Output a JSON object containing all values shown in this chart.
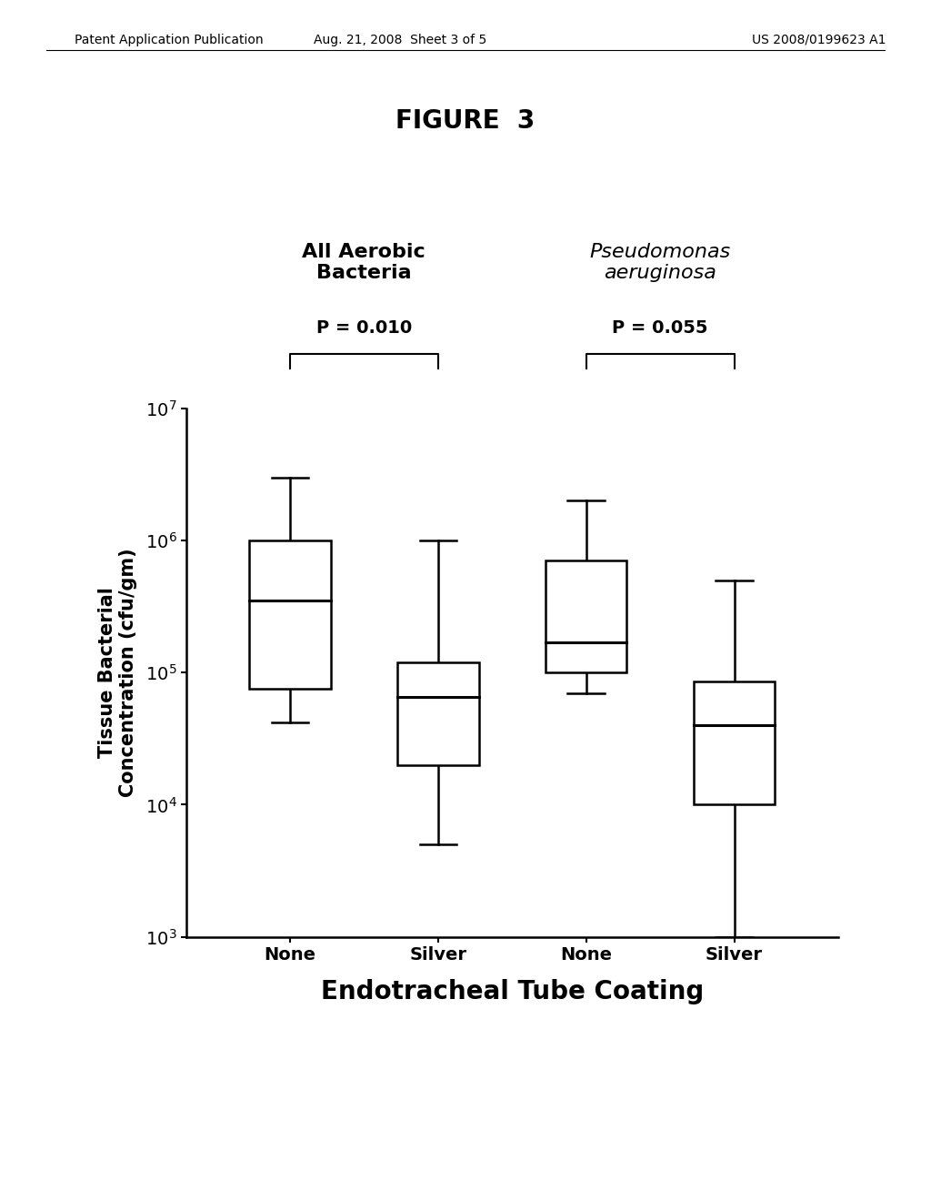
{
  "figure_title": "FIGURE  3",
  "patent_header_left": "Patent Application Publication",
  "patent_header_mid": "Aug. 21, 2008  Sheet 3 of 5",
  "patent_header_right": "US 2008/0199623 A1",
  "group_label_1": "All Aerobic\nBacteria",
  "group_label_2": "Pseudomonas\naeruginosa",
  "x_tick_labels": [
    "None",
    "Silver",
    "None",
    "Silver"
  ],
  "xlabel": "Endotracheal Tube Coating",
  "ylabel": "Tissue Bacterial\nConcentration (cfu/gm)",
  "ymin": 3,
  "ymax": 7,
  "p_values": [
    "P = 0.010",
    "P = 0.055"
  ],
  "boxes": [
    {
      "x": 1,
      "whisker_low": 42000.0,
      "q1": 75000.0,
      "median": 350000.0,
      "q3": 1000000.0,
      "whisker_high": 3000000.0
    },
    {
      "x": 2,
      "whisker_low": 5000.0,
      "q1": 20000.0,
      "median": 65000.0,
      "q3": 120000.0,
      "whisker_high": 1000000.0
    },
    {
      "x": 3,
      "whisker_low": 70000.0,
      "q1": 100000.0,
      "median": 170000.0,
      "q3": 700000.0,
      "whisker_high": 2000000.0
    },
    {
      "x": 4,
      "whisker_low": 1000.0,
      "q1": 10000.0,
      "median": 40000.0,
      "q3": 85000.0,
      "whisker_high": 500000.0
    }
  ],
  "box_width": 0.55,
  "box_facecolor": "white",
  "box_edgecolor": "black",
  "background_color": "white",
  "tick_label_fontsize": 14,
  "axis_label_fontsize": 15,
  "xlabel_fontsize": 20,
  "group_label_fontsize": 16,
  "p_value_fontsize": 14,
  "figure_title_fontsize": 20,
  "patent_fontsize": 10
}
